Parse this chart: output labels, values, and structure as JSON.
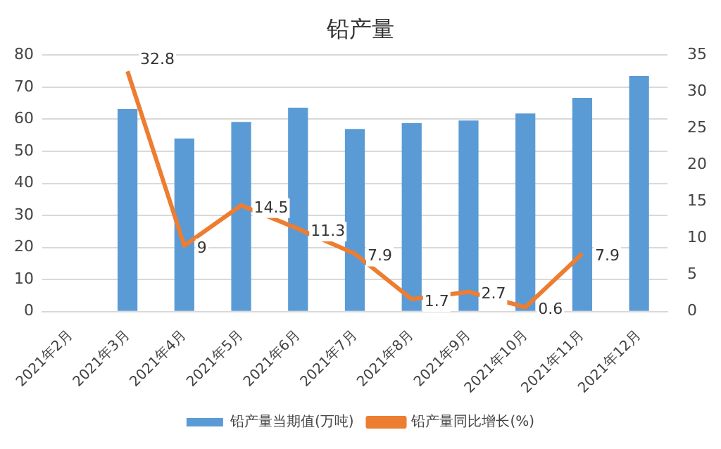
{
  "chart_data": {
    "type": "bar",
    "title": "铅产量",
    "categories": [
      "2021年2月",
      "2021年3月",
      "2021年4月",
      "2021年5月",
      "2021年6月",
      "2021年7月",
      "2021年8月",
      "2021年9月",
      "2021年10月",
      "2021年11月",
      "2021年12月"
    ],
    "series": [
      {
        "name": "铅产量当期值(万吨)",
        "color": "#5b9bd5",
        "values": [
          null,
          63.2,
          54,
          59.2,
          63.6,
          57,
          58.8,
          59.6,
          61.8,
          66.7,
          73.5
        ]
      },
      {
        "name": "铅产量同比增长(%)",
        "type": "line",
        "axis": "y2",
        "color": "#ed7d31",
        "values": [
          null,
          32.8,
          9,
          14.5,
          11.3,
          7.9,
          1.7,
          2.7,
          0.6,
          7.9,
          null
        ],
        "value_labels": [
          null,
          "32.8",
          "9",
          "14.5",
          "11.3",
          "7.9",
          "1.7",
          "2.7",
          "0.6",
          "7.9",
          null
        ]
      }
    ],
    "ylim": [
      0,
      80
    ],
    "yticks": [
      0,
      10,
      20,
      30,
      40,
      50,
      60,
      70,
      80
    ],
    "y2lim": [
      0,
      35
    ],
    "y2ticks": [
      0,
      5,
      10,
      15,
      20,
      25,
      30,
      35
    ],
    "grid": "y",
    "legend": "bottom",
    "marker": "none"
  }
}
